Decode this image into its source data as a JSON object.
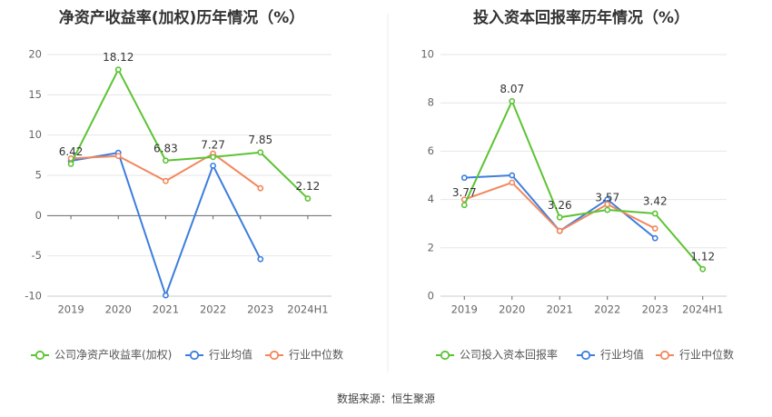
{
  "charts": [
    {
      "type": "line",
      "title": "净资产收益率(加权)历年情况（%）",
      "categories": [
        "2019",
        "2020",
        "2021",
        "2022",
        "2023",
        "2024H1"
      ],
      "ylim": [
        -10,
        20
      ],
      "yticks": [
        "20",
        "15",
        "10",
        "5",
        "0",
        "-5",
        "-10"
      ],
      "ytick_values": [
        20,
        15,
        10,
        5,
        0,
        -5,
        -10
      ],
      "grid": true,
      "legend_position": "bottom-left",
      "series": [
        {
          "name": "公司净资产收益率(加权)",
          "color": "#5cc334",
          "values": [
            6.42,
            18.12,
            6.83,
            7.27,
            7.85,
            2.12
          ],
          "labels": [
            "6.42",
            "18.12",
            "6.83",
            "7.27",
            "7.85",
            "2.12"
          ]
        },
        {
          "name": "行业均值",
          "color": "#3d7ede",
          "values": [
            6.8,
            7.8,
            -9.9,
            6.2,
            -5.4,
            null
          ]
        },
        {
          "name": "行业中位数",
          "color": "#f2875d",
          "values": [
            7.1,
            7.4,
            4.3,
            7.7,
            3.4,
            null
          ]
        }
      ]
    },
    {
      "type": "line",
      "title": "投入资本回报率历年情况（%）",
      "categories": [
        "2019",
        "2020",
        "2021",
        "2022",
        "2023",
        "2024H1"
      ],
      "ylim": [
        0,
        10
      ],
      "yticks": [
        "10",
        "8",
        "6",
        "4",
        "2",
        "0"
      ],
      "ytick_values": [
        10,
        8,
        6,
        4,
        2,
        0
      ],
      "grid": true,
      "legend_position": "bottom-left",
      "series": [
        {
          "name": "公司投入资本回报率",
          "color": "#5cc334",
          "values": [
            3.77,
            8.07,
            3.26,
            3.57,
            3.42,
            1.12
          ],
          "labels": [
            "3.77",
            "8.07",
            "3.26",
            "3.57",
            "3.42",
            "1.12"
          ]
        },
        {
          "name": "行业均值",
          "color": "#3d7ede",
          "values": [
            4.9,
            5.0,
            2.7,
            4.0,
            2.4,
            null
          ]
        },
        {
          "name": "行业中位数",
          "color": "#f2875d",
          "values": [
            4.0,
            4.7,
            2.7,
            3.8,
            2.8,
            null
          ]
        }
      ]
    }
  ],
  "footer": {
    "source": "数据来源：恒生聚源"
  }
}
